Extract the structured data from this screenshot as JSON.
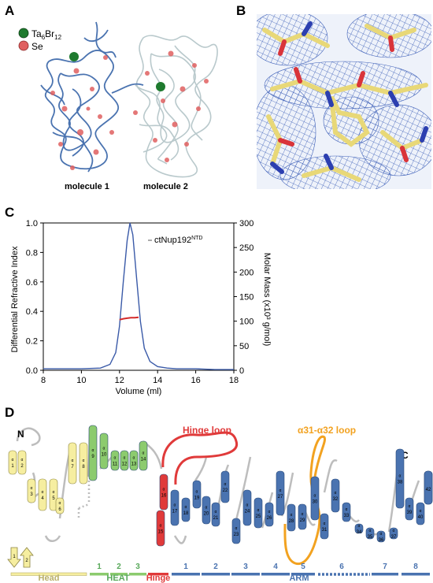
{
  "panels": {
    "A": "A",
    "B": "B",
    "C": "C",
    "D": "D"
  },
  "panel_a": {
    "legend": [
      {
        "label_main": "Ta",
        "sub1": "6",
        "label_mid": "Br",
        "sub2": "12",
        "color": "#1e7a2e"
      },
      {
        "label_main": "Se",
        "sub1": "",
        "label_mid": "",
        "sub2": "",
        "color": "#e06060"
      }
    ],
    "molecule1": "molecule 1",
    "molecule2": "molecule 2",
    "ribbon_color_1": "#4a73b0",
    "ribbon_color_2": "#b9c9cc"
  },
  "panel_b": {
    "mesh_color": "#3d5fb8",
    "stick_color": "#e8d878"
  },
  "panel_c": {
    "y_left_label": "Differential Refractive Index",
    "y_right_label": "Molar Mass (x10³ g/mol)",
    "x_label": "Volume (ml)",
    "legend": "ctNup192",
    "legend_sup": "NTD",
    "chart_data": {
      "type": "line",
      "xlabel": "Volume (ml)",
      "ylabel": "Differential Refractive Index",
      "y2label": "Molar Mass (x10³ g/mol)",
      "xlim": [
        8,
        18
      ],
      "ylim": [
        0,
        1.0
      ],
      "y2lim": [
        0,
        300
      ],
      "x_ticks": [
        8,
        10,
        12,
        14,
        16,
        18
      ],
      "y_ticks": [
        "0.0",
        "0.2",
        "0.4",
        "0.6",
        "0.8",
        "1.0"
      ],
      "y2_ticks": [
        0,
        50,
        100,
        150,
        200,
        250,
        300
      ],
      "series": [
        {
          "name": "ctNup192NTD",
          "color": "#3a5aa8",
          "x": [
            8,
            9,
            10,
            11,
            11.5,
            11.8,
            12.0,
            12.2,
            12.4,
            12.55,
            12.7,
            12.9,
            13.1,
            13.3,
            13.6,
            14.0,
            14.5,
            15,
            16,
            17,
            18
          ],
          "y": [
            0.01,
            0.01,
            0.01,
            0.015,
            0.04,
            0.12,
            0.3,
            0.6,
            0.88,
            1.0,
            0.92,
            0.62,
            0.33,
            0.15,
            0.06,
            0.025,
            0.015,
            0.01,
            0.01,
            0.005,
            0.005
          ]
        },
        {
          "name": "molar mass",
          "color": "#d42a2a",
          "x": [
            12.0,
            12.2,
            12.4,
            12.6,
            12.8,
            13.0
          ],
          "y2": [
            103,
            105,
            106,
            107,
            107,
            108
          ]
        }
      ]
    }
  },
  "panel_d": {
    "n_label": "N",
    "c_label": "C",
    "hinge_loop": "Hinge loop",
    "loop_label": "α31-α32 loop",
    "alpha": "α",
    "beta": "β",
    "domains": [
      {
        "name": "Head",
        "color": "#b9b06a"
      },
      {
        "name": "HEAT",
        "color": "#58a85a"
      },
      {
        "name": "Hinge",
        "color": "#e03a3a"
      },
      {
        "name": "ARM",
        "color": "#4a73b0"
      }
    ],
    "heat_repeats": [
      "1",
      "2",
      "3"
    ],
    "arm_repeats": [
      "1",
      "2",
      "3",
      "4",
      "5",
      "6",
      "7",
      "8"
    ],
    "helix_numbers": [
      "1",
      "2",
      "3",
      "4",
      "5",
      "6",
      "7",
      "8",
      "9",
      "10",
      "11",
      "12",
      "13",
      "14",
      "15",
      "16",
      "17",
      "18",
      "19",
      "20",
      "21",
      "22",
      "23",
      "24",
      "25",
      "26",
      "27",
      "28",
      "29",
      "30",
      "31",
      "32",
      "33",
      "34",
      "35",
      "36",
      "37",
      "38",
      "39",
      "40",
      "41",
      "42"
    ],
    "strands": [
      "1",
      "2"
    ],
    "colors": {
      "head": "#f6eea0",
      "heat": "#8ccb6e",
      "hinge": "#e03a3a",
      "arm": "#4a73b0",
      "loop": "#f2a220",
      "linker": "#bdbdbd"
    }
  }
}
